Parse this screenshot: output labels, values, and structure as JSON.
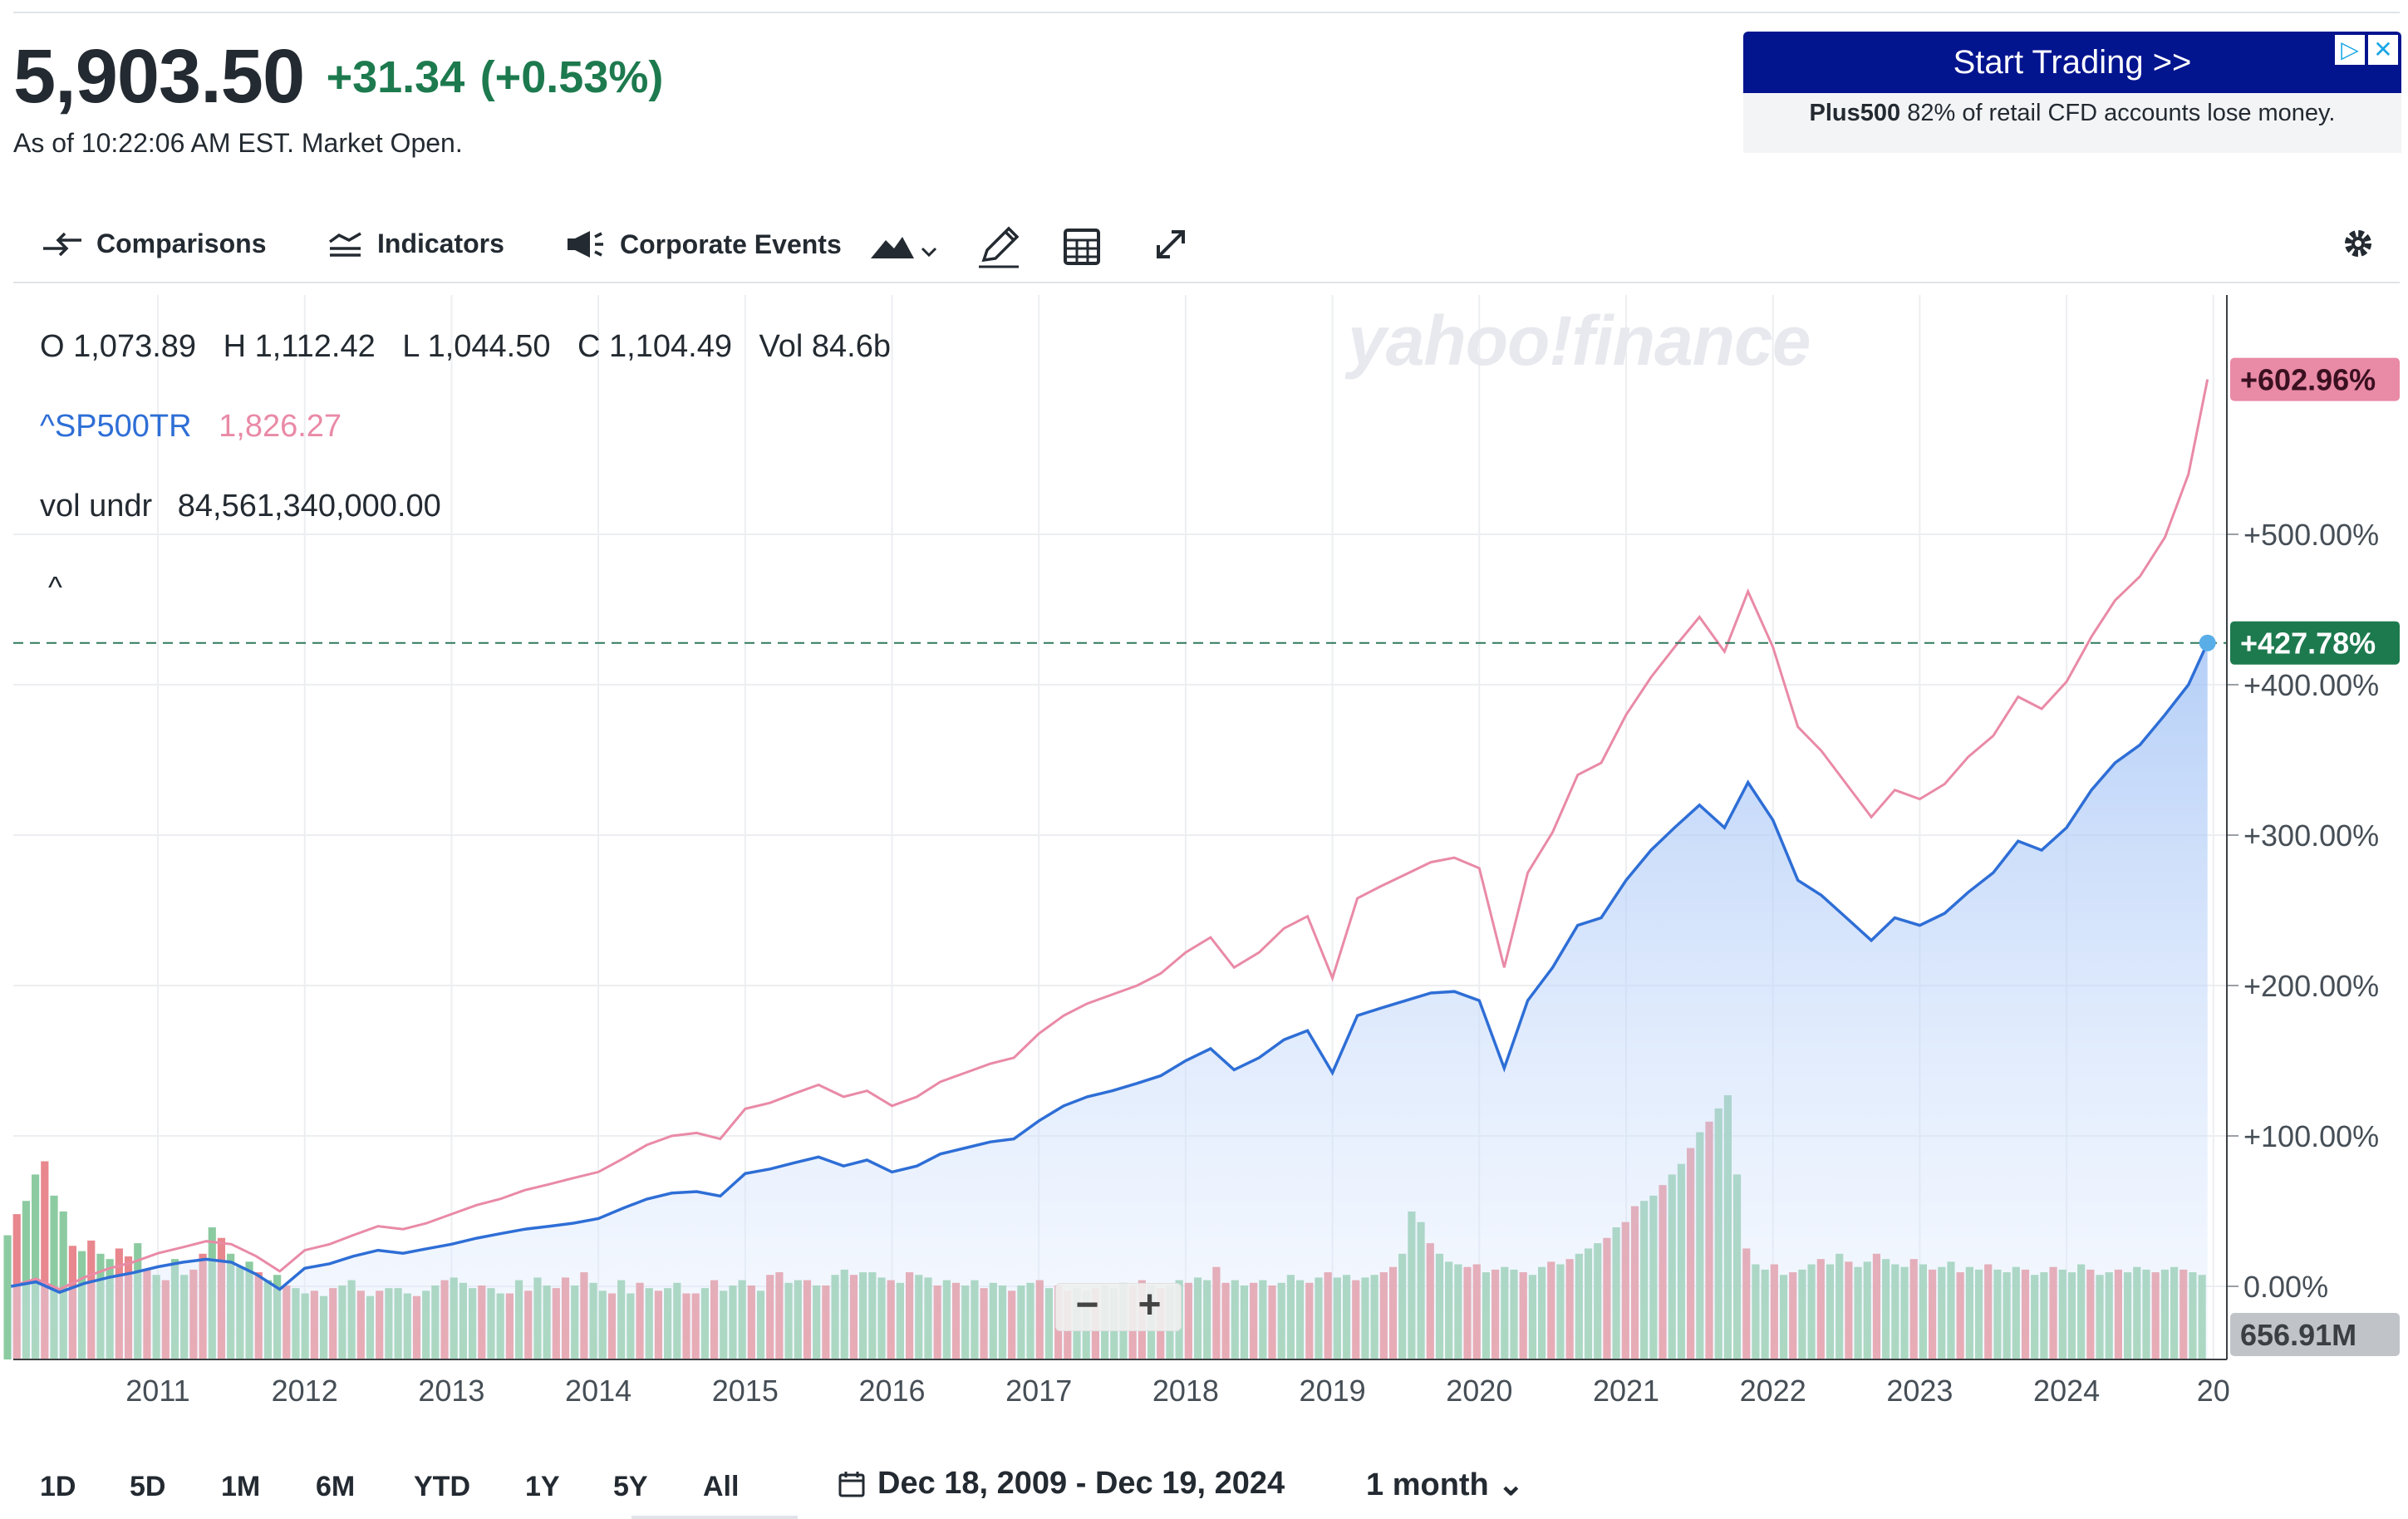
{
  "quote": {
    "price": "5,903.50",
    "change": "+31.34",
    "change_pct": "(+0.53%)",
    "as_of": "As of 10:22:06 AM EST. Market Open."
  },
  "ad": {
    "button": "Start Trading >>",
    "brand": "Plus500",
    "disclaimer": "82% of retail CFD accounts lose money."
  },
  "toolbar": {
    "comparisons": "Comparisons",
    "indicators": "Indicators",
    "corporate_events": "Corporate Events"
  },
  "ohlc": {
    "open": "O 1,073.89",
    "high": "H 1,112.42",
    "low": "L 1,044.50",
    "close": "C 1,104.49",
    "vol": "Vol 84.6b"
  },
  "legend": {
    "symbol": "^SP500TR",
    "value": "1,826.27"
  },
  "vol_undr": {
    "label": "vol undr",
    "value": "84,561,340,000.00"
  },
  "collapse": "^",
  "watermark": "yahoo!finance",
  "zoom": {
    "minus": "−",
    "plus": "+"
  },
  "ranges": [
    "1D",
    "5D",
    "1M",
    "6M",
    "YTD",
    "1Y",
    "5Y",
    "All"
  ],
  "date_range": "Dec 18, 2009 - Dec 19, 2024",
  "interval": "1 month ⌄",
  "colors": {
    "main": "#2e6ed6",
    "compare": "#e98aa6",
    "up": "#8ccba1",
    "down": "#e8878d",
    "price_tag": "#1d7a4e",
    "compare_tag": "#e98aa6",
    "vol_tag": "#c0c4c8"
  },
  "chart_data": {
    "type": "line",
    "x_ticks": [
      "2011",
      "2012",
      "2013",
      "2014",
      "2015",
      "2016",
      "2017",
      "2018",
      "2019",
      "2020",
      "2021",
      "2022",
      "2023",
      "2024",
      "20"
    ],
    "y_ticks": [
      "+500.00%",
      "+400.00%",
      "+300.00%",
      "+200.00%",
      "+100.00%",
      "0.00%"
    ],
    "ylim": [
      0,
      650
    ],
    "current_tag": "+427.78%",
    "compare_tag": "+602.96%",
    "volume_tag": "656.91M",
    "series": [
      {
        "name": "5,903.50",
        "x": [
          2010.0,
          2010.17,
          2010.33,
          2010.5,
          2010.67,
          2010.83,
          2011.0,
          2011.17,
          2011.33,
          2011.5,
          2011.67,
          2011.83,
          2012.0,
          2012.17,
          2012.33,
          2012.5,
          2012.67,
          2012.83,
          2013.0,
          2013.17,
          2013.33,
          2013.5,
          2013.67,
          2013.83,
          2014.0,
          2014.17,
          2014.33,
          2014.5,
          2014.67,
          2014.83,
          2015.0,
          2015.17,
          2015.33,
          2015.5,
          2015.67,
          2015.83,
          2016.0,
          2016.17,
          2016.33,
          2016.5,
          2016.67,
          2016.83,
          2017.0,
          2017.17,
          2017.33,
          2017.5,
          2017.67,
          2017.83,
          2018.0,
          2018.17,
          2018.33,
          2018.5,
          2018.67,
          2018.83,
          2019.0,
          2019.17,
          2019.33,
          2019.5,
          2019.67,
          2019.83,
          2020.0,
          2020.17,
          2020.33,
          2020.5,
          2020.67,
          2020.83,
          2021.0,
          2021.17,
          2021.33,
          2021.5,
          2021.67,
          2021.83,
          2022.0,
          2022.17,
          2022.33,
          2022.5,
          2022.67,
          2022.83,
          2023.0,
          2023.17,
          2023.33,
          2023.5,
          2023.67,
          2023.83,
          2024.0,
          2024.17,
          2024.33,
          2024.5,
          2024.67,
          2024.83,
          2024.96
        ],
        "values": [
          0,
          3,
          -4,
          2,
          6,
          9,
          13,
          16,
          18,
          16,
          8,
          -2,
          12,
          15,
          20,
          24,
          22,
          25,
          28,
          32,
          35,
          38,
          40,
          42,
          45,
          52,
          58,
          62,
          63,
          60,
          75,
          78,
          82,
          86,
          80,
          84,
          76,
          80,
          88,
          92,
          96,
          98,
          110,
          120,
          126,
          130,
          135,
          140,
          150,
          158,
          144,
          152,
          164,
          170,
          142,
          180,
          185,
          190,
          195,
          196,
          190,
          145,
          190,
          212,
          240,
          245,
          270,
          290,
          305,
          320,
          305,
          335,
          310,
          270,
          260,
          245,
          230,
          245,
          240,
          248,
          262,
          275,
          296,
          290,
          305,
          330,
          348,
          360,
          380,
          400,
          427.78
        ]
      },
      {
        "name": "^SP500TR",
        "x": [
          2010.0,
          2010.17,
          2010.33,
          2010.5,
          2010.67,
          2010.83,
          2011.0,
          2011.17,
          2011.33,
          2011.5,
          2011.67,
          2011.83,
          2012.0,
          2012.17,
          2012.33,
          2012.5,
          2012.67,
          2012.83,
          2013.0,
          2013.17,
          2013.33,
          2013.5,
          2013.67,
          2013.83,
          2014.0,
          2014.17,
          2014.33,
          2014.5,
          2014.67,
          2014.83,
          2015.0,
          2015.17,
          2015.33,
          2015.5,
          2015.67,
          2015.83,
          2016.0,
          2016.17,
          2016.33,
          2016.5,
          2016.67,
          2016.83,
          2017.0,
          2017.17,
          2017.33,
          2017.5,
          2017.67,
          2017.83,
          2018.0,
          2018.17,
          2018.33,
          2018.5,
          2018.67,
          2018.83,
          2019.0,
          2019.17,
          2019.33,
          2019.5,
          2019.67,
          2019.83,
          2020.0,
          2020.17,
          2020.33,
          2020.5,
          2020.67,
          2020.83,
          2021.0,
          2021.17,
          2021.33,
          2021.5,
          2021.67,
          2021.83,
          2022.0,
          2022.17,
          2022.33,
          2022.5,
          2022.67,
          2022.83,
          2023.0,
          2023.17,
          2023.33,
          2023.5,
          2023.67,
          2023.83,
          2024.0,
          2024.17,
          2024.33,
          2024.5,
          2024.67,
          2024.83,
          2024.96
        ],
        "values": [
          0,
          5,
          -2,
          6,
          12,
          16,
          22,
          26,
          30,
          28,
          20,
          10,
          24,
          28,
          34,
          40,
          38,
          42,
          48,
          54,
          58,
          64,
          68,
          72,
          76,
          85,
          94,
          100,
          102,
          98,
          118,
          122,
          128,
          134,
          126,
          130,
          120,
          126,
          136,
          142,
          148,
          152,
          168,
          180,
          188,
          194,
          200,
          208,
          222,
          232,
          212,
          222,
          238,
          246,
          205,
          258,
          266,
          274,
          282,
          285,
          278,
          212,
          275,
          302,
          340,
          348,
          380,
          405,
          425,
          445,
          422,
          462,
          425,
          372,
          356,
          334,
          312,
          330,
          324,
          334,
          352,
          366,
          392,
          384,
          402,
          432,
          456,
          472,
          498,
          540,
          602.96
        ]
      }
    ],
    "volume": {
      "x_range": [
        2009.95,
        2024.96
      ],
      "values": [
        0.47,
        0.55,
        0.6,
        0.7,
        0.75,
        0.62,
        0.56,
        0.43,
        0.41,
        0.45,
        0.4,
        0.38,
        0.42,
        0.39,
        0.44,
        0.34,
        0.32,
        0.3,
        0.38,
        0.32,
        0.34,
        0.4,
        0.5,
        0.46,
        0.4,
        0.35,
        0.37,
        0.33,
        0.3,
        0.32,
        0.28,
        0.27,
        0.25,
        0.26,
        0.24,
        0.27,
        0.28,
        0.3,
        0.26,
        0.24,
        0.26,
        0.27,
        0.27,
        0.25,
        0.24,
        0.26,
        0.28,
        0.3,
        0.31,
        0.29,
        0.27,
        0.28,
        0.27,
        0.25,
        0.25,
        0.3,
        0.26,
        0.31,
        0.28,
        0.27,
        0.31,
        0.28,
        0.33,
        0.29,
        0.26,
        0.25,
        0.3,
        0.25,
        0.29,
        0.27,
        0.26,
        0.27,
        0.29,
        0.25,
        0.25,
        0.27,
        0.3,
        0.26,
        0.28,
        0.3,
        0.28,
        0.26,
        0.32,
        0.33,
        0.29,
        0.3,
        0.3,
        0.28,
        0.28,
        0.32,
        0.34,
        0.32,
        0.33,
        0.33,
        0.31,
        0.3,
        0.29,
        0.33,
        0.32,
        0.31,
        0.28,
        0.3,
        0.29,
        0.28,
        0.3,
        0.27,
        0.29,
        0.28,
        0.26,
        0.28,
        0.29,
        0.3,
        0.27,
        0.28,
        0.26,
        0.27,
        0.26,
        0.27,
        0.28,
        0.27,
        0.29,
        0.28,
        0.3,
        0.28,
        0.27,
        0.28,
        0.3,
        0.29,
        0.31,
        0.3,
        0.35,
        0.29,
        0.3,
        0.28,
        0.29,
        0.3,
        0.28,
        0.29,
        0.32,
        0.3,
        0.29,
        0.31,
        0.33,
        0.31,
        0.32,
        0.3,
        0.31,
        0.32,
        0.33,
        0.35,
        0.4,
        0.56,
        0.52,
        0.44,
        0.4,
        0.37,
        0.36,
        0.35,
        0.36,
        0.33,
        0.34,
        0.35,
        0.34,
        0.33,
        0.32,
        0.35,
        0.37,
        0.36,
        0.38,
        0.4,
        0.42,
        0.44,
        0.46,
        0.5,
        0.52,
        0.58,
        0.6,
        0.62,
        0.66,
        0.7,
        0.74,
        0.8,
        0.86,
        0.9,
        0.95,
        1.0,
        0.7,
        0.42,
        0.36,
        0.34,
        0.36,
        0.32,
        0.33,
        0.34,
        0.36,
        0.38,
        0.36,
        0.4,
        0.37,
        0.35,
        0.37,
        0.4,
        0.38,
        0.36,
        0.35,
        0.38,
        0.36,
        0.34,
        0.35,
        0.37,
        0.33,
        0.35,
        0.34,
        0.36,
        0.34,
        0.33,
        0.35,
        0.34,
        0.32,
        0.33,
        0.35,
        0.34,
        0.33,
        0.36,
        0.34,
        0.32,
        0.33,
        0.34,
        0.33,
        0.35,
        0.34,
        0.33,
        0.34,
        0.35,
        0.34,
        0.33,
        0.32
      ],
      "up": [
        1,
        0,
        1,
        1,
        0,
        1,
        1,
        0,
        1,
        0,
        1,
        1,
        0,
        0,
        1,
        0,
        1,
        0,
        1,
        1,
        0,
        0,
        1,
        0,
        1,
        1,
        1,
        0,
        1,
        1,
        0,
        1,
        1,
        0,
        1,
        0,
        1,
        1,
        0,
        1,
        0,
        1,
        1,
        1,
        0,
        1,
        1,
        0,
        1,
        1,
        1,
        0,
        1,
        1,
        0,
        1,
        0,
        1,
        1,
        0,
        0,
        1,
        0,
        1,
        1,
        0,
        1,
        1,
        0,
        1,
        0,
        1,
        1,
        0,
        0,
        1,
        0,
        1,
        1,
        1,
        0,
        1,
        0,
        0,
        1,
        1,
        0,
        1,
        0,
        1,
        1,
        0,
        1,
        1,
        1,
        0,
        1,
        0,
        1,
        1,
        0,
        1,
        0,
        1,
        1,
        0,
        1,
        1,
        0,
        1,
        1,
        0,
        1,
        0,
        0,
        1,
        1,
        0,
        1,
        1,
        1,
        0,
        0,
        1,
        0,
        1,
        1,
        0,
        1,
        1,
        0,
        0,
        1,
        1,
        0,
        1,
        0,
        1,
        1,
        1,
        0,
        1,
        0,
        1,
        1,
        0,
        1,
        1,
        0,
        0,
        1,
        1,
        1,
        0,
        1,
        1,
        1,
        0,
        0,
        1,
        0,
        1,
        1,
        0,
        1,
        1,
        0,
        1,
        0,
        1,
        1,
        1,
        0,
        1,
        0,
        0,
        1,
        1,
        0,
        1,
        1,
        0,
        1,
        0,
        1,
        1,
        1,
        0,
        1,
        1,
        0,
        1,
        0,
        1,
        1,
        0,
        1,
        1,
        0,
        1,
        1,
        0,
        1,
        1,
        1,
        0,
        1,
        0,
        1,
        1,
        0,
        1,
        1,
        0,
        1,
        1,
        1,
        0,
        1,
        1,
        0,
        1,
        1,
        1,
        0,
        1,
        1,
        0,
        1,
        1,
        1,
        0,
        1,
        1,
        0,
        1,
        1,
        1,
        1,
        1,
        0,
        1,
        1,
        1,
        0,
        1,
        1,
        0,
        1,
        1,
        1,
        1,
        0
      ]
    }
  }
}
